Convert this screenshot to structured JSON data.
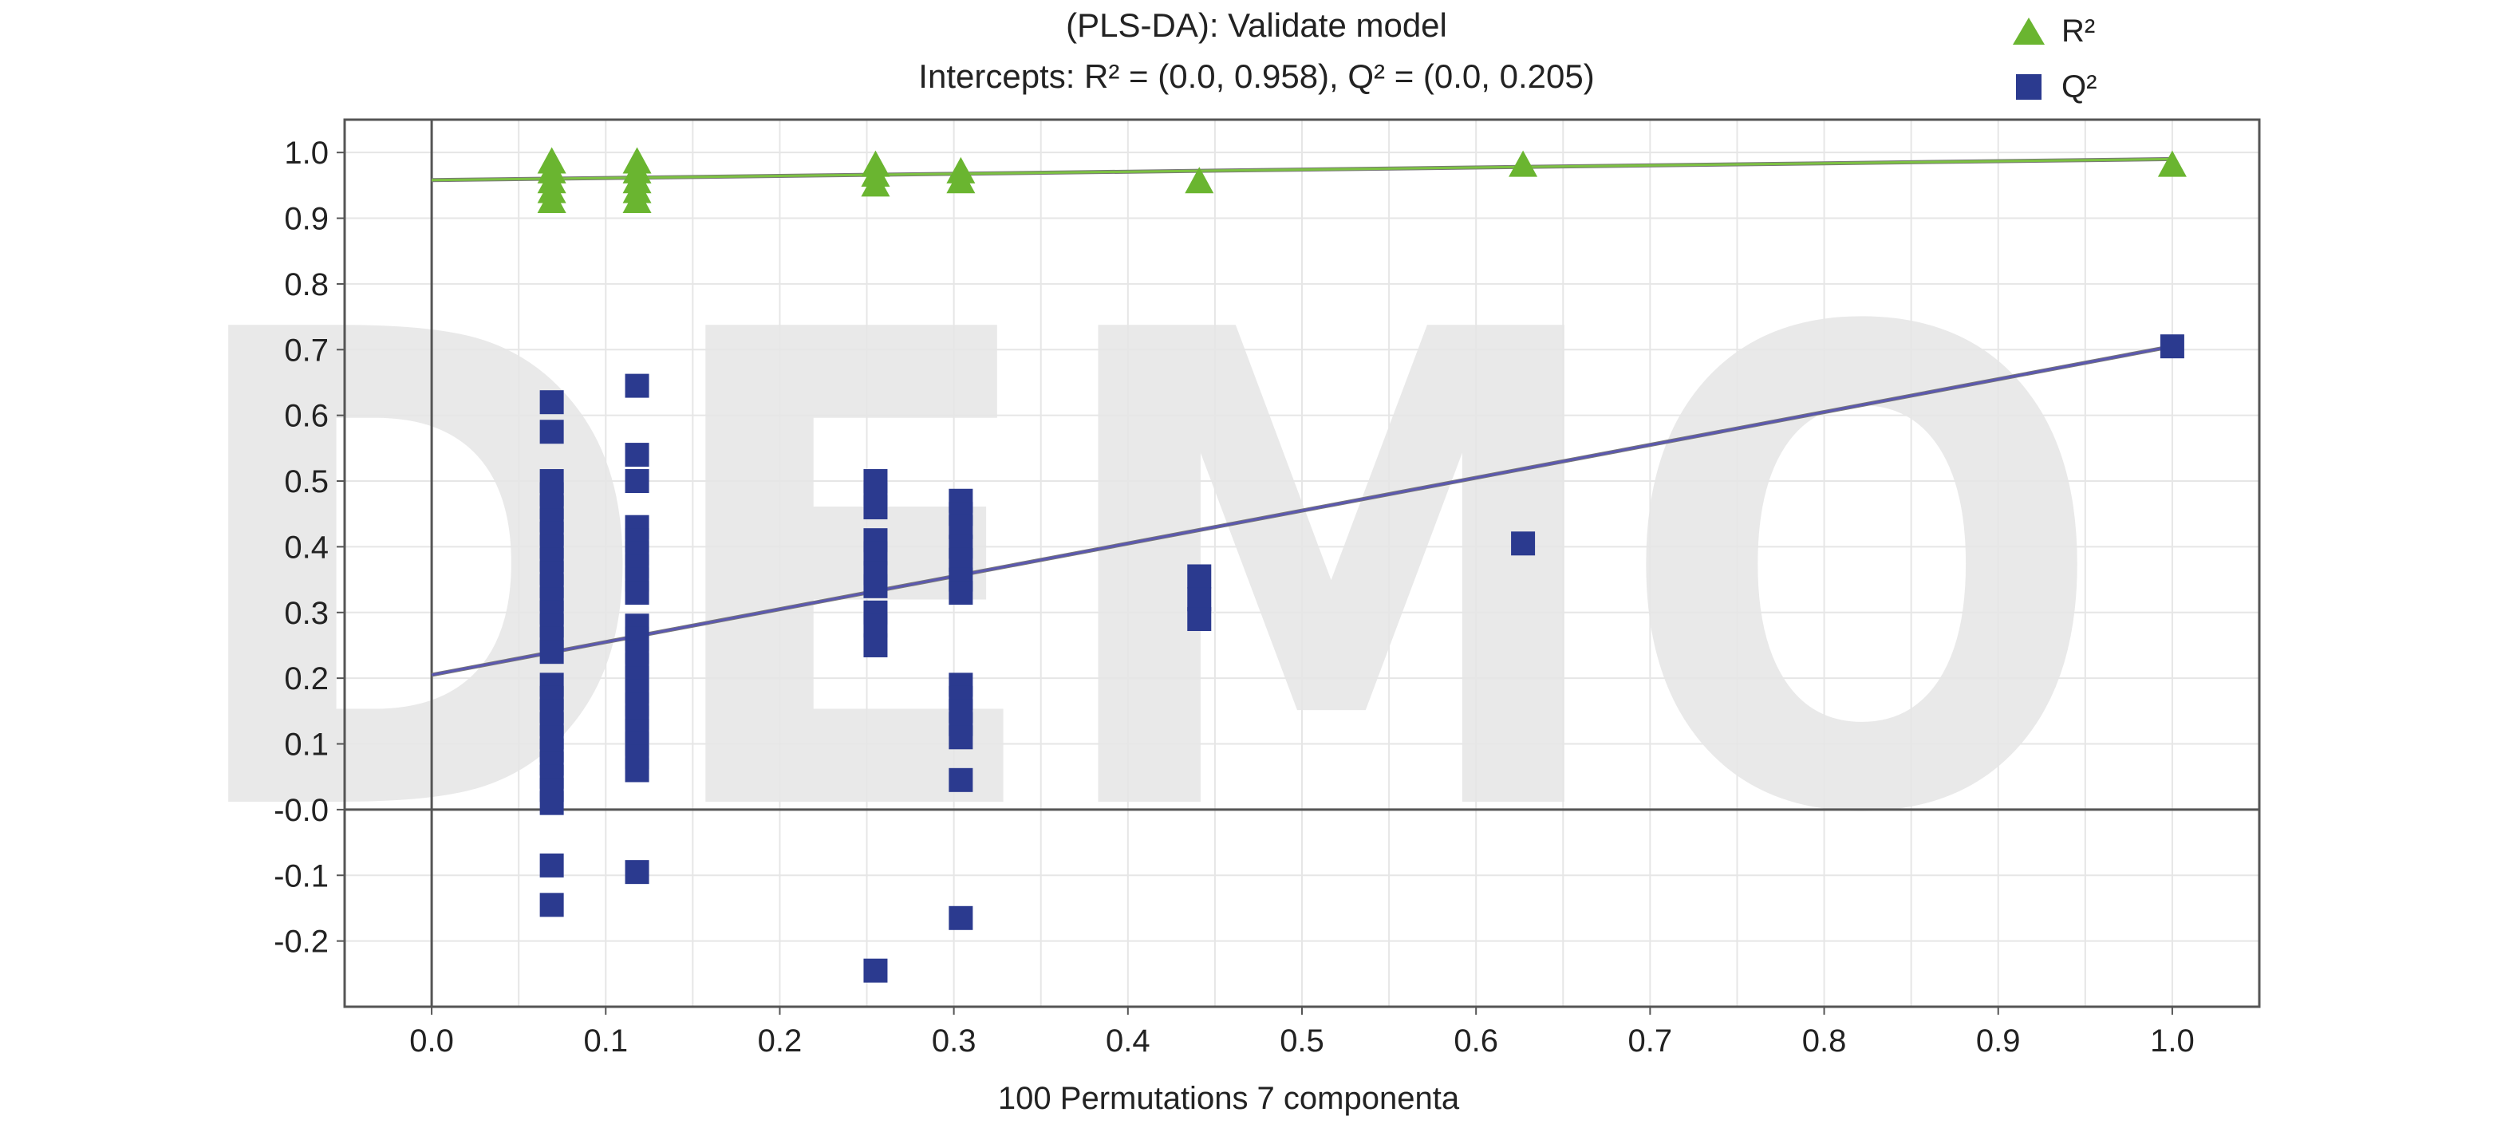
{
  "chart_data": {
    "type": "scatter",
    "title": "(PLS-DA): Validate model",
    "subtitle": "Intercepts: R² = (0.0, 0.958), Q² = (0.0, 0.205)",
    "xlabel": "100 Permutations 7 componenta",
    "ylabel": "",
    "xlim": [
      -0.05,
      1.05
    ],
    "ylim": [
      -0.3,
      1.05
    ],
    "x_ticks": [
      "0.0",
      "0.1",
      "0.2",
      "0.3",
      "0.4",
      "0.5",
      "0.6",
      "0.7",
      "0.8",
      "0.9",
      "1.0"
    ],
    "y_ticks": [
      "1.0",
      "0.9",
      "0.8",
      "0.7",
      "0.6",
      "0.5",
      "0.4",
      "0.3",
      "0.2",
      "0.1",
      "-0.0",
      "-0.1",
      "-0.2"
    ],
    "watermark": "DEMO",
    "legend_position": "top-right",
    "grid": true,
    "colors": {
      "r2": "#6ab530",
      "q2": "#2b3a8f",
      "r2_line": "#7dc242",
      "q2_line": "#5b58b0",
      "axis": "#555555",
      "grid": "#e6e6e6"
    },
    "series": [
      {
        "name": "R²",
        "marker": "triangle",
        "points": [
          {
            "x": 0.069,
            "y": 0.985
          },
          {
            "x": 0.069,
            "y": 0.97
          },
          {
            "x": 0.069,
            "y": 0.955
          },
          {
            "x": 0.069,
            "y": 0.94
          },
          {
            "x": 0.069,
            "y": 0.925
          },
          {
            "x": 0.118,
            "y": 0.985
          },
          {
            "x": 0.118,
            "y": 0.97
          },
          {
            "x": 0.118,
            "y": 0.955
          },
          {
            "x": 0.118,
            "y": 0.94
          },
          {
            "x": 0.118,
            "y": 0.925
          },
          {
            "x": 0.255,
            "y": 0.98
          },
          {
            "x": 0.255,
            "y": 0.965
          },
          {
            "x": 0.255,
            "y": 0.95
          },
          {
            "x": 0.304,
            "y": 0.97
          },
          {
            "x": 0.304,
            "y": 0.955
          },
          {
            "x": 0.441,
            "y": 0.955
          },
          {
            "x": 0.627,
            "y": 0.98
          },
          {
            "x": 1.0,
            "y": 0.98
          }
        ]
      },
      {
        "name": "Q²",
        "marker": "square",
        "points": [
          {
            "x": 0.069,
            "y": 0.62
          },
          {
            "x": 0.069,
            "y": 0.575
          },
          {
            "x": 0.069,
            "y": 0.5
          },
          {
            "x": 0.069,
            "y": 0.48
          },
          {
            "x": 0.069,
            "y": 0.46
          },
          {
            "x": 0.069,
            "y": 0.44
          },
          {
            "x": 0.069,
            "y": 0.42
          },
          {
            "x": 0.069,
            "y": 0.4
          },
          {
            "x": 0.069,
            "y": 0.38
          },
          {
            "x": 0.069,
            "y": 0.36
          },
          {
            "x": 0.069,
            "y": 0.34
          },
          {
            "x": 0.069,
            "y": 0.32
          },
          {
            "x": 0.069,
            "y": 0.3
          },
          {
            "x": 0.069,
            "y": 0.28
          },
          {
            "x": 0.069,
            "y": 0.26
          },
          {
            "x": 0.069,
            "y": 0.24
          },
          {
            "x": 0.069,
            "y": 0.19
          },
          {
            "x": 0.069,
            "y": 0.17
          },
          {
            "x": 0.069,
            "y": 0.15
          },
          {
            "x": 0.069,
            "y": 0.13
          },
          {
            "x": 0.069,
            "y": 0.11
          },
          {
            "x": 0.069,
            "y": 0.09
          },
          {
            "x": 0.069,
            "y": 0.07
          },
          {
            "x": 0.069,
            "y": 0.05
          },
          {
            "x": 0.069,
            "y": 0.03
          },
          {
            "x": 0.069,
            "y": 0.01
          },
          {
            "x": 0.069,
            "y": -0.085
          },
          {
            "x": 0.069,
            "y": -0.145
          },
          {
            "x": 0.118,
            "y": 0.645
          },
          {
            "x": 0.118,
            "y": 0.54
          },
          {
            "x": 0.118,
            "y": 0.5
          },
          {
            "x": 0.118,
            "y": 0.43
          },
          {
            "x": 0.118,
            "y": 0.41
          },
          {
            "x": 0.118,
            "y": 0.39
          },
          {
            "x": 0.118,
            "y": 0.37
          },
          {
            "x": 0.118,
            "y": 0.35
          },
          {
            "x": 0.118,
            "y": 0.33
          },
          {
            "x": 0.118,
            "y": 0.28
          },
          {
            "x": 0.118,
            "y": 0.26
          },
          {
            "x": 0.118,
            "y": 0.24
          },
          {
            "x": 0.118,
            "y": 0.22
          },
          {
            "x": 0.118,
            "y": 0.2
          },
          {
            "x": 0.118,
            "y": 0.18
          },
          {
            "x": 0.118,
            "y": 0.16
          },
          {
            "x": 0.118,
            "y": 0.14
          },
          {
            "x": 0.118,
            "y": 0.12
          },
          {
            "x": 0.118,
            "y": 0.1
          },
          {
            "x": 0.118,
            "y": 0.08
          },
          {
            "x": 0.118,
            "y": 0.06
          },
          {
            "x": 0.118,
            "y": -0.095
          },
          {
            "x": 0.255,
            "y": 0.5
          },
          {
            "x": 0.255,
            "y": 0.48
          },
          {
            "x": 0.255,
            "y": 0.46
          },
          {
            "x": 0.255,
            "y": 0.41
          },
          {
            "x": 0.255,
            "y": 0.39
          },
          {
            "x": 0.255,
            "y": 0.36
          },
          {
            "x": 0.255,
            "y": 0.34
          },
          {
            "x": 0.255,
            "y": 0.3
          },
          {
            "x": 0.255,
            "y": 0.28
          },
          {
            "x": 0.255,
            "y": 0.25
          },
          {
            "x": 0.255,
            "y": -0.245
          },
          {
            "x": 0.304,
            "y": 0.47
          },
          {
            "x": 0.304,
            "y": 0.45
          },
          {
            "x": 0.304,
            "y": 0.43
          },
          {
            "x": 0.304,
            "y": 0.4
          },
          {
            "x": 0.304,
            "y": 0.38
          },
          {
            "x": 0.304,
            "y": 0.35
          },
          {
            "x": 0.304,
            "y": 0.33
          },
          {
            "x": 0.304,
            "y": 0.19
          },
          {
            "x": 0.304,
            "y": 0.17
          },
          {
            "x": 0.304,
            "y": 0.15
          },
          {
            "x": 0.304,
            "y": 0.13
          },
          {
            "x": 0.304,
            "y": 0.11
          },
          {
            "x": 0.304,
            "y": 0.045
          },
          {
            "x": 0.304,
            "y": -0.165
          },
          {
            "x": 0.441,
            "y": 0.355
          },
          {
            "x": 0.441,
            "y": 0.32
          },
          {
            "x": 0.441,
            "y": 0.29
          },
          {
            "x": 0.627,
            "y": 0.405
          },
          {
            "x": 1.0,
            "y": 0.705
          }
        ]
      }
    ],
    "regression_lines": [
      {
        "series": "R²",
        "x": [
          0.0,
          1.0
        ],
        "y": [
          0.958,
          0.99
        ]
      },
      {
        "series": "Q²",
        "x": [
          0.0,
          1.0
        ],
        "y": [
          0.205,
          0.705
        ]
      }
    ]
  }
}
